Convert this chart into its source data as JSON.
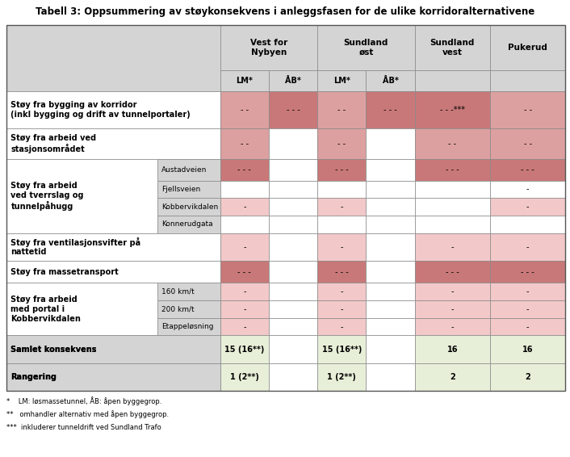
{
  "title": "Tabell 3: Oppsummering av støykonsekvens i anleggsfasen for de ulike korridoralternativene",
  "gray": "#d4d4d4",
  "white": "#ffffff",
  "pink_light": "#f2c8c8",
  "pink_mid": "#dda0a0",
  "pink_dark": "#c87878",
  "green_light": "#e8efd8",
  "footnotes": [
    "*    LM: løsmassetunnel, ÅB: åpen byggegrop.",
    "**   omhandler alternativ med åpen byggegrop.",
    "***  inkluderer tunneldrift ved Sundland Trafo"
  ],
  "col_groups": [
    {
      "label": "Vest for\nNybyen",
      "subcols": [
        "LM*",
        "ÅB*"
      ]
    },
    {
      "label": "Sundland\nøst",
      "subcols": [
        "LM*",
        "ÅB*"
      ]
    },
    {
      "label": "Sundland\nvest",
      "subcols": [
        ""
      ]
    },
    {
      "label": "Pukerud",
      "subcols": [
        ""
      ]
    }
  ],
  "rows": [
    {
      "type": "data",
      "label": "Støy fra bygging av korridor\n(inkl bygging og drift av tunnelportaler)",
      "label_bold": true,
      "sublabel": "",
      "cells": [
        "- -",
        "- - -",
        "- -",
        "- - -",
        "- - -***",
        "- -"
      ],
      "cell_colors": [
        "pink_mid",
        "pink_dark",
        "pink_mid",
        "pink_dark",
        "pink_dark",
        "pink_mid"
      ]
    },
    {
      "type": "data",
      "label": "Støy fra arbeid ved\nstasjonsområdet",
      "label_bold": true,
      "sublabel": "",
      "cells": [
        "- -",
        "",
        "- -",
        "",
        "- -",
        "- -"
      ],
      "cell_colors": [
        "pink_mid",
        "white",
        "pink_mid",
        "white",
        "pink_mid",
        "pink_mid"
      ]
    },
    {
      "type": "merged_start",
      "merged_label": "Støy fra arbeid\nved tverrslag og\ntunnelpåhugg",
      "sublabel": "Austadveien",
      "cells": [
        "- - -",
        "",
        "- - -",
        "",
        "- - -",
        "- - -"
      ],
      "cell_colors": [
        "pink_dark",
        "white",
        "pink_dark",
        "white",
        "pink_dark",
        "pink_dark"
      ]
    },
    {
      "type": "merged_cont",
      "sublabel": "Fjellsveien",
      "cells": [
        "",
        "",
        "",
        "",
        "",
        "-"
      ],
      "cell_colors": [
        "white",
        "white",
        "white",
        "white",
        "white",
        "white"
      ]
    },
    {
      "type": "merged_cont",
      "sublabel": "Kobbervikdalen",
      "cells": [
        "-",
        "",
        "-",
        "",
        "",
        "-"
      ],
      "cell_colors": [
        "pink_light",
        "white",
        "pink_light",
        "white",
        "white",
        "pink_light"
      ]
    },
    {
      "type": "merged_end",
      "sublabel": "Konnerudgata",
      "cells": [
        "",
        "",
        "",
        "",
        "",
        ""
      ],
      "cell_colors": [
        "white",
        "white",
        "white",
        "white",
        "white",
        "white"
      ]
    },
    {
      "type": "data",
      "label": "Støy fra ventilasjonsvifter på\nnattetid",
      "label_bold": true,
      "sublabel": "",
      "cells": [
        "-",
        "",
        "-",
        "",
        "-",
        "-"
      ],
      "cell_colors": [
        "pink_light",
        "white",
        "pink_light",
        "white",
        "pink_light",
        "pink_light"
      ]
    },
    {
      "type": "data",
      "label": "Støy fra massetransport",
      "label_bold": true,
      "sublabel": "",
      "cells": [
        "- - -",
        "",
        "- - -",
        "",
        "- - -",
        "- - -"
      ],
      "cell_colors": [
        "pink_dark",
        "white",
        "pink_dark",
        "white",
        "pink_dark",
        "pink_dark"
      ]
    },
    {
      "type": "merged_start",
      "merged_label": "Støy fra arbeid\nmed portal i\nKobbervikdalen",
      "sublabel": "160 km/t",
      "cells": [
        "-",
        "",
        "-",
        "",
        "-",
        "-"
      ],
      "cell_colors": [
        "pink_light",
        "white",
        "pink_light",
        "white",
        "pink_light",
        "pink_light"
      ]
    },
    {
      "type": "merged_cont",
      "sublabel": "200 km/t",
      "cells": [
        "-",
        "",
        "-",
        "",
        "-",
        "-"
      ],
      "cell_colors": [
        "pink_light",
        "white",
        "pink_light",
        "white",
        "pink_light",
        "pink_light"
      ]
    },
    {
      "type": "merged_end",
      "sublabel": "Etappeløsning",
      "cells": [
        "-",
        "",
        "-",
        "",
        "-",
        "-"
      ],
      "cell_colors": [
        "pink_light",
        "white",
        "pink_light",
        "white",
        "pink_light",
        "pink_light"
      ]
    },
    {
      "type": "summary",
      "label": "Samlet konsekvens",
      "label_bold": true,
      "sublabel": "",
      "cells": [
        "15 (16**)",
        "",
        "15 (16**)",
        "",
        "16",
        "16"
      ],
      "cell_colors": [
        "green_light",
        "white",
        "green_light",
        "white",
        "green_light",
        "green_light"
      ]
    },
    {
      "type": "summary",
      "label": "Rangering",
      "label_bold": true,
      "sublabel": "",
      "cells": [
        "1 (2**)",
        "",
        "1 (2**)",
        "",
        "2",
        "2"
      ],
      "cell_colors": [
        "green_light",
        "white",
        "green_light",
        "white",
        "green_light",
        "green_light"
      ]
    }
  ]
}
